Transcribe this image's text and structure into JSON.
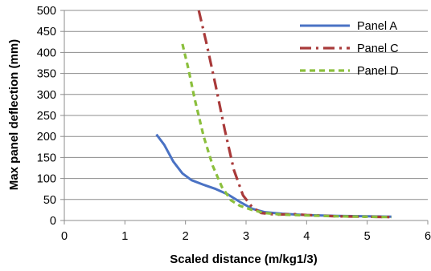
{
  "chart_data": {
    "type": "line",
    "title": "",
    "xlabel": "Scaled distance  (m/kg1/3)",
    "ylabel": "Max panel deflection (mm)",
    "xlim": [
      0,
      6
    ],
    "ylim": [
      0,
      500
    ],
    "x_ticks": [
      "0",
      "1",
      "2",
      "3",
      "4",
      "5",
      "6"
    ],
    "y_ticks": [
      "0",
      "50",
      "100",
      "150",
      "200",
      "250",
      "300",
      "350",
      "400",
      "450",
      "500"
    ],
    "grid": "horizontal",
    "legend_position": "top-right",
    "series": [
      {
        "name": "Panel A",
        "color": "#4a72c4",
        "dash": "solid",
        "points": [
          [
            1.52,
            205
          ],
          [
            1.65,
            180
          ],
          [
            1.8,
            140
          ],
          [
            1.95,
            112
          ],
          [
            2.1,
            96
          ],
          [
            2.3,
            85
          ],
          [
            2.5,
            75
          ],
          [
            2.7,
            62
          ],
          [
            2.9,
            44
          ],
          [
            3.1,
            28
          ],
          [
            3.3,
            20
          ],
          [
            3.6,
            16
          ],
          [
            4.0,
            13
          ],
          [
            4.5,
            11
          ],
          [
            5.0,
            10
          ],
          [
            5.4,
            9
          ]
        ]
      },
      {
        "name": "Panel C",
        "color": "#a93a3a",
        "dash": "dashdot",
        "points": [
          [
            2.22,
            500
          ],
          [
            2.35,
            420
          ],
          [
            2.5,
            320
          ],
          [
            2.65,
            215
          ],
          [
            2.8,
            120
          ],
          [
            2.95,
            60
          ],
          [
            3.1,
            32
          ],
          [
            3.25,
            18
          ],
          [
            3.5,
            14
          ],
          [
            3.8,
            15
          ],
          [
            4.0,
            13
          ],
          [
            4.5,
            10
          ],
          [
            5.0,
            9
          ],
          [
            5.4,
            8
          ]
        ]
      },
      {
        "name": "Panel D",
        "color": "#8bbf3c",
        "dash": "dashed",
        "points": [
          [
            1.95,
            420
          ],
          [
            2.05,
            360
          ],
          [
            2.15,
            290
          ],
          [
            2.3,
            200
          ],
          [
            2.45,
            130
          ],
          [
            2.6,
            80
          ],
          [
            2.75,
            48
          ],
          [
            2.9,
            35
          ],
          [
            3.1,
            25
          ],
          [
            3.3,
            18
          ],
          [
            3.6,
            14
          ],
          [
            4.0,
            12
          ],
          [
            4.5,
            10
          ],
          [
            5.0,
            9
          ],
          [
            5.4,
            8
          ]
        ]
      }
    ]
  }
}
